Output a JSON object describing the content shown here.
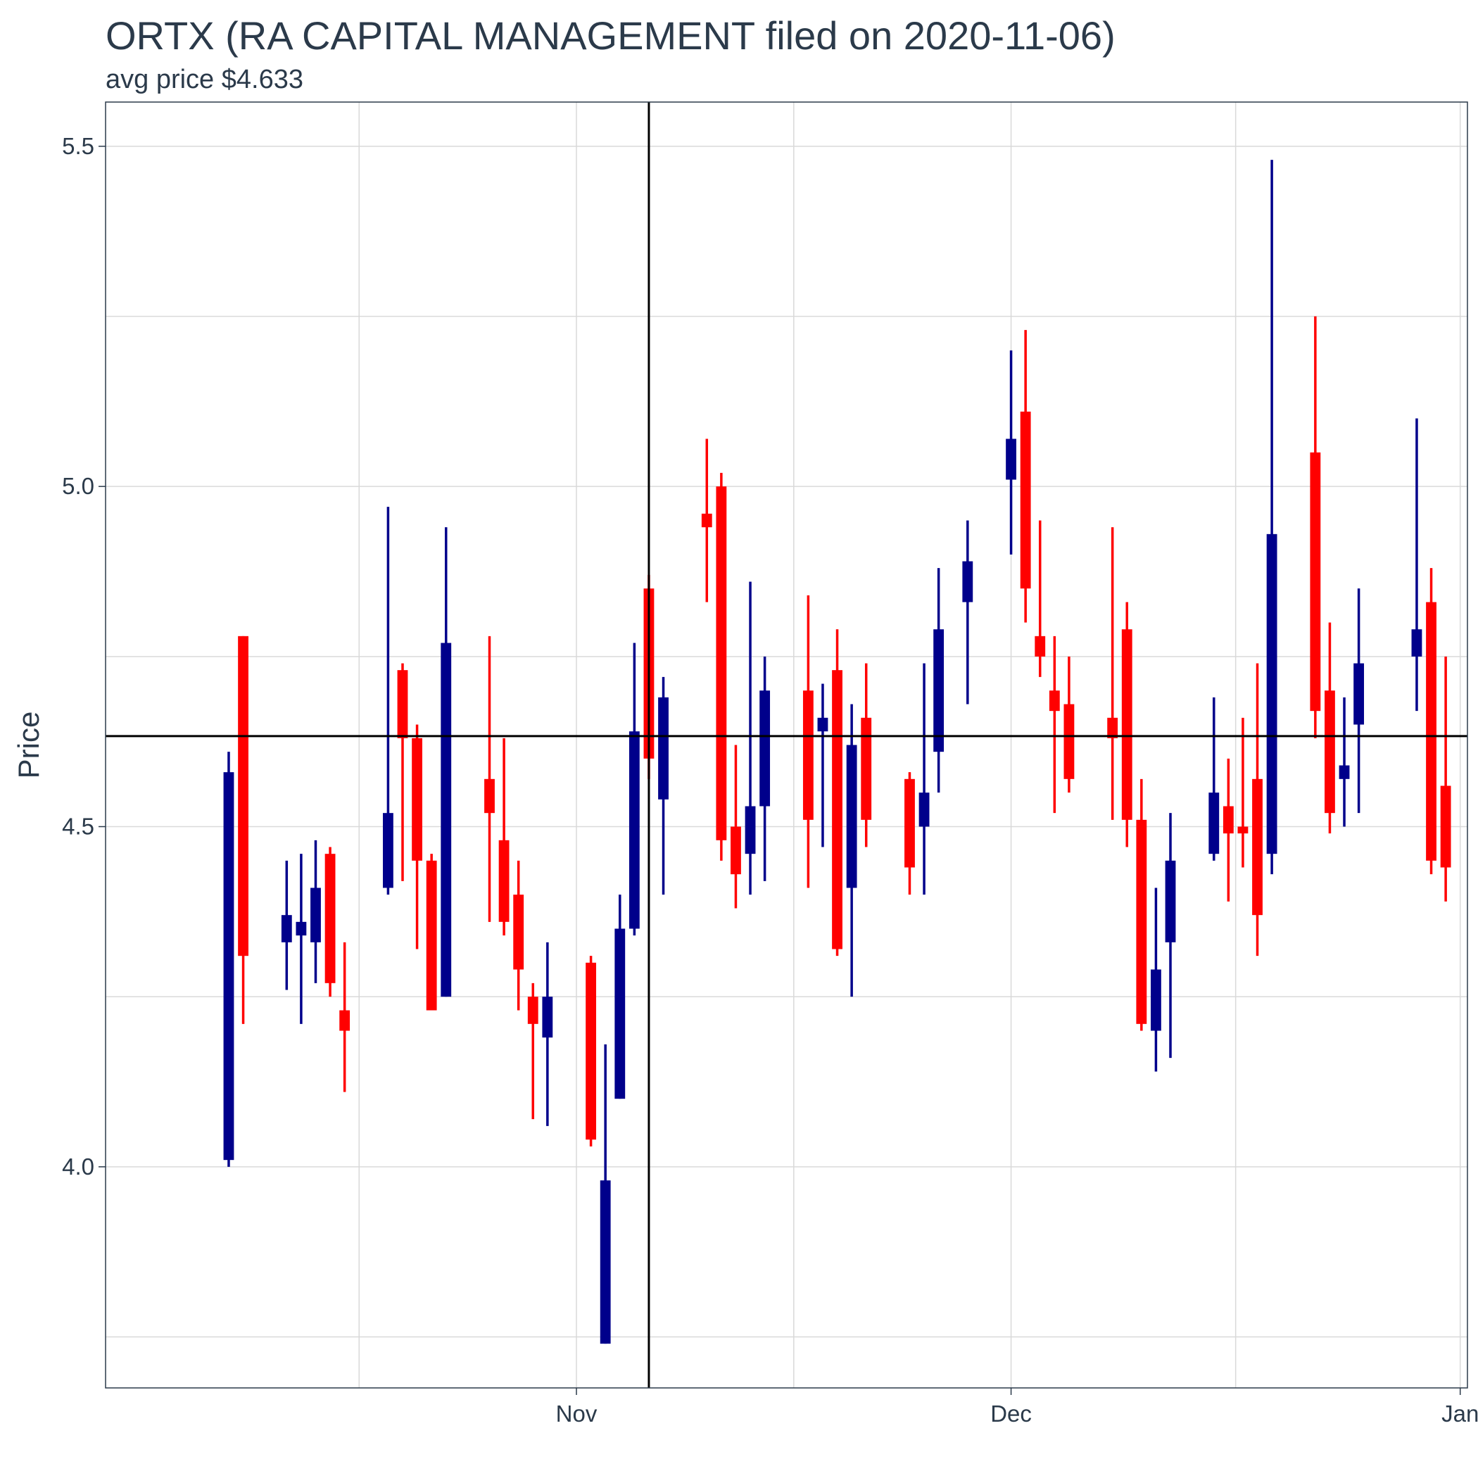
{
  "chart_data": {
    "type": "candlestick",
    "title": "ORTX (RA CAPITAL MANAGEMENT filed on 2020-11-06)",
    "subtitle": "avg price $4.633",
    "ylabel": "Price",
    "xlabel": "",
    "ylim": [
      3.675,
      5.565
    ],
    "xlim": [
      "2020-10-01",
      "2020-12-31"
    ],
    "y_ticks": [
      4.0,
      4.5,
      5.0,
      5.5
    ],
    "y_tick_labels": [
      "4.0",
      "4.5",
      "5.0",
      "5.5"
    ],
    "x_ticks": [
      {
        "date": "2020-11-01",
        "label": "Nov"
      },
      {
        "date": "2020-12-01",
        "label": "Dec"
      },
      {
        "date": "2021-01-01",
        "label": "Jan"
      }
    ],
    "grid": true,
    "reference_lines": {
      "horizontal_price": 4.633,
      "vertical_date": "2020-11-06"
    },
    "colors": {
      "up": "#00008B",
      "down": "#FF0000",
      "reference": "#000000",
      "grid": "#d9d9d9",
      "text": "#2b3a4a"
    },
    "candles": [
      {
        "date": "2020-10-08",
        "open": 4.01,
        "high": 4.61,
        "low": 4.0,
        "close": 4.58,
        "direction": "up"
      },
      {
        "date": "2020-10-09",
        "open": 4.78,
        "high": 4.78,
        "low": 4.21,
        "close": 4.31,
        "direction": "down"
      },
      {
        "date": "2020-10-12",
        "open": 4.33,
        "high": 4.45,
        "low": 4.26,
        "close": 4.37,
        "direction": "up"
      },
      {
        "date": "2020-10-13",
        "open": 4.34,
        "high": 4.46,
        "low": 4.21,
        "close": 4.36,
        "direction": "up"
      },
      {
        "date": "2020-10-14",
        "open": 4.33,
        "high": 4.48,
        "low": 4.27,
        "close": 4.41,
        "direction": "up"
      },
      {
        "date": "2020-10-15",
        "open": 4.46,
        "high": 4.47,
        "low": 4.25,
        "close": 4.27,
        "direction": "down"
      },
      {
        "date": "2020-10-16",
        "open": 4.23,
        "high": 4.33,
        "low": 4.11,
        "close": 4.2,
        "direction": "down"
      },
      {
        "date": "2020-10-19",
        "open": 4.41,
        "high": 4.97,
        "low": 4.4,
        "close": 4.52,
        "direction": "up"
      },
      {
        "date": "2020-10-20",
        "open": 4.73,
        "high": 4.74,
        "low": 4.42,
        "close": 4.63,
        "direction": "down"
      },
      {
        "date": "2020-10-21",
        "open": 4.63,
        "high": 4.65,
        "low": 4.32,
        "close": 4.45,
        "direction": "down"
      },
      {
        "date": "2020-10-22",
        "open": 4.45,
        "high": 4.46,
        "low": 4.23,
        "close": 4.23,
        "direction": "down"
      },
      {
        "date": "2020-10-23",
        "open": 4.25,
        "high": 4.94,
        "low": 4.25,
        "close": 4.77,
        "direction": "up"
      },
      {
        "date": "2020-10-26",
        "open": 4.57,
        "high": 4.78,
        "low": 4.36,
        "close": 4.52,
        "direction": "down"
      },
      {
        "date": "2020-10-27",
        "open": 4.48,
        "high": 4.63,
        "low": 4.34,
        "close": 4.36,
        "direction": "down"
      },
      {
        "date": "2020-10-28",
        "open": 4.4,
        "high": 4.45,
        "low": 4.23,
        "close": 4.29,
        "direction": "down"
      },
      {
        "date": "2020-10-29",
        "open": 4.25,
        "high": 4.27,
        "low": 4.07,
        "close": 4.21,
        "direction": "down"
      },
      {
        "date": "2020-10-30",
        "open": 4.19,
        "high": 4.33,
        "low": 4.06,
        "close": 4.25,
        "direction": "up"
      },
      {
        "date": "2020-11-02",
        "open": 4.3,
        "high": 4.31,
        "low": 4.03,
        "close": 4.04,
        "direction": "down"
      },
      {
        "date": "2020-11-03",
        "open": 3.74,
        "high": 4.18,
        "low": 3.74,
        "close": 3.98,
        "direction": "up"
      },
      {
        "date": "2020-11-04",
        "open": 4.1,
        "high": 4.4,
        "low": 4.1,
        "close": 4.35,
        "direction": "up"
      },
      {
        "date": "2020-11-05",
        "open": 4.35,
        "high": 4.77,
        "low": 4.34,
        "close": 4.64,
        "direction": "up"
      },
      {
        "date": "2020-11-06",
        "open": 4.85,
        "high": 4.87,
        "low": 4.57,
        "close": 4.6,
        "direction": "down"
      },
      {
        "date": "2020-11-07",
        "open": 4.54,
        "high": 4.72,
        "low": 4.4,
        "close": 4.69,
        "direction": "up"
      },
      {
        "date": "2020-11-10",
        "open": 4.96,
        "high": 5.07,
        "low": 4.83,
        "close": 4.94,
        "direction": "down"
      },
      {
        "date": "2020-11-11",
        "open": 5.0,
        "high": 5.02,
        "low": 4.45,
        "close": 4.48,
        "direction": "down"
      },
      {
        "date": "2020-11-12",
        "open": 4.5,
        "high": 4.62,
        "low": 4.38,
        "close": 4.43,
        "direction": "down"
      },
      {
        "date": "2020-11-13",
        "open": 4.46,
        "high": 4.86,
        "low": 4.4,
        "close": 4.53,
        "direction": "up"
      },
      {
        "date": "2020-11-14",
        "open": 4.53,
        "high": 4.75,
        "low": 4.42,
        "close": 4.7,
        "direction": "up"
      },
      {
        "date": "2020-11-17",
        "open": 4.7,
        "high": 4.84,
        "low": 4.41,
        "close": 4.51,
        "direction": "down"
      },
      {
        "date": "2020-11-18",
        "open": 4.64,
        "high": 4.71,
        "low": 4.47,
        "close": 4.66,
        "direction": "up"
      },
      {
        "date": "2020-11-19",
        "open": 4.73,
        "high": 4.79,
        "low": 4.31,
        "close": 4.32,
        "direction": "down"
      },
      {
        "date": "2020-11-20",
        "open": 4.41,
        "high": 4.68,
        "low": 4.25,
        "close": 4.62,
        "direction": "up"
      },
      {
        "date": "2020-11-21",
        "open": 4.66,
        "high": 4.74,
        "low": 4.47,
        "close": 4.51,
        "direction": "down"
      },
      {
        "date": "2020-11-24",
        "open": 4.57,
        "high": 4.58,
        "low": 4.4,
        "close": 4.44,
        "direction": "down"
      },
      {
        "date": "2020-11-25",
        "open": 4.5,
        "high": 4.74,
        "low": 4.4,
        "close": 4.55,
        "direction": "up"
      },
      {
        "date": "2020-11-26",
        "open": 4.61,
        "high": 4.88,
        "low": 4.55,
        "close": 4.79,
        "direction": "up"
      },
      {
        "date": "2020-11-28",
        "open": 4.83,
        "high": 4.95,
        "low": 4.68,
        "close": 4.89,
        "direction": "up"
      },
      {
        "date": "2020-12-01",
        "open": 5.01,
        "high": 5.2,
        "low": 4.9,
        "close": 5.07,
        "direction": "up"
      },
      {
        "date": "2020-12-02",
        "open": 5.11,
        "high": 5.23,
        "low": 4.8,
        "close": 4.85,
        "direction": "down"
      },
      {
        "date": "2020-12-03",
        "open": 4.78,
        "high": 4.95,
        "low": 4.72,
        "close": 4.75,
        "direction": "down"
      },
      {
        "date": "2020-12-04",
        "open": 4.7,
        "high": 4.78,
        "low": 4.52,
        "close": 4.67,
        "direction": "down"
      },
      {
        "date": "2020-12-05",
        "open": 4.68,
        "high": 4.75,
        "low": 4.55,
        "close": 4.57,
        "direction": "down"
      },
      {
        "date": "2020-12-08",
        "open": 4.66,
        "high": 4.94,
        "low": 4.51,
        "close": 4.63,
        "direction": "down"
      },
      {
        "date": "2020-12-09",
        "open": 4.79,
        "high": 4.83,
        "low": 4.47,
        "close": 4.51,
        "direction": "down"
      },
      {
        "date": "2020-12-10",
        "open": 4.51,
        "high": 4.57,
        "low": 4.2,
        "close": 4.21,
        "direction": "down"
      },
      {
        "date": "2020-12-11",
        "open": 4.2,
        "high": 4.41,
        "low": 4.14,
        "close": 4.29,
        "direction": "up"
      },
      {
        "date": "2020-12-12",
        "open": 4.33,
        "high": 4.52,
        "low": 4.16,
        "close": 4.45,
        "direction": "up"
      },
      {
        "date": "2020-12-15",
        "open": 4.46,
        "high": 4.69,
        "low": 4.45,
        "close": 4.55,
        "direction": "up"
      },
      {
        "date": "2020-12-16",
        "open": 4.53,
        "high": 4.6,
        "low": 4.39,
        "close": 4.49,
        "direction": "down"
      },
      {
        "date": "2020-12-17",
        "open": 4.5,
        "high": 4.66,
        "low": 4.44,
        "close": 4.49,
        "direction": "down"
      },
      {
        "date": "2020-12-18",
        "open": 4.57,
        "high": 4.74,
        "low": 4.31,
        "close": 4.37,
        "direction": "down"
      },
      {
        "date": "2020-12-19",
        "open": 4.46,
        "high": 5.48,
        "low": 4.43,
        "close": 4.93,
        "direction": "up"
      },
      {
        "date": "2020-12-22",
        "open": 5.05,
        "high": 5.25,
        "low": 4.63,
        "close": 4.67,
        "direction": "down"
      },
      {
        "date": "2020-12-23",
        "open": 4.7,
        "high": 4.8,
        "low": 4.49,
        "close": 4.52,
        "direction": "down"
      },
      {
        "date": "2020-12-24",
        "open": 4.57,
        "high": 4.69,
        "low": 4.5,
        "close": 4.59,
        "direction": "up"
      },
      {
        "date": "2020-12-25",
        "open": 4.65,
        "high": 4.85,
        "low": 4.52,
        "close": 4.74,
        "direction": "up"
      },
      {
        "date": "2020-12-29",
        "open": 4.75,
        "high": 5.1,
        "low": 4.67,
        "close": 4.79,
        "direction": "up"
      },
      {
        "date": "2020-12-30",
        "open": 4.83,
        "high": 4.88,
        "low": 4.43,
        "close": 4.45,
        "direction": "down"
      },
      {
        "date": "2020-12-31",
        "open": 4.56,
        "high": 4.75,
        "low": 4.39,
        "close": 4.44,
        "direction": "down"
      }
    ]
  }
}
